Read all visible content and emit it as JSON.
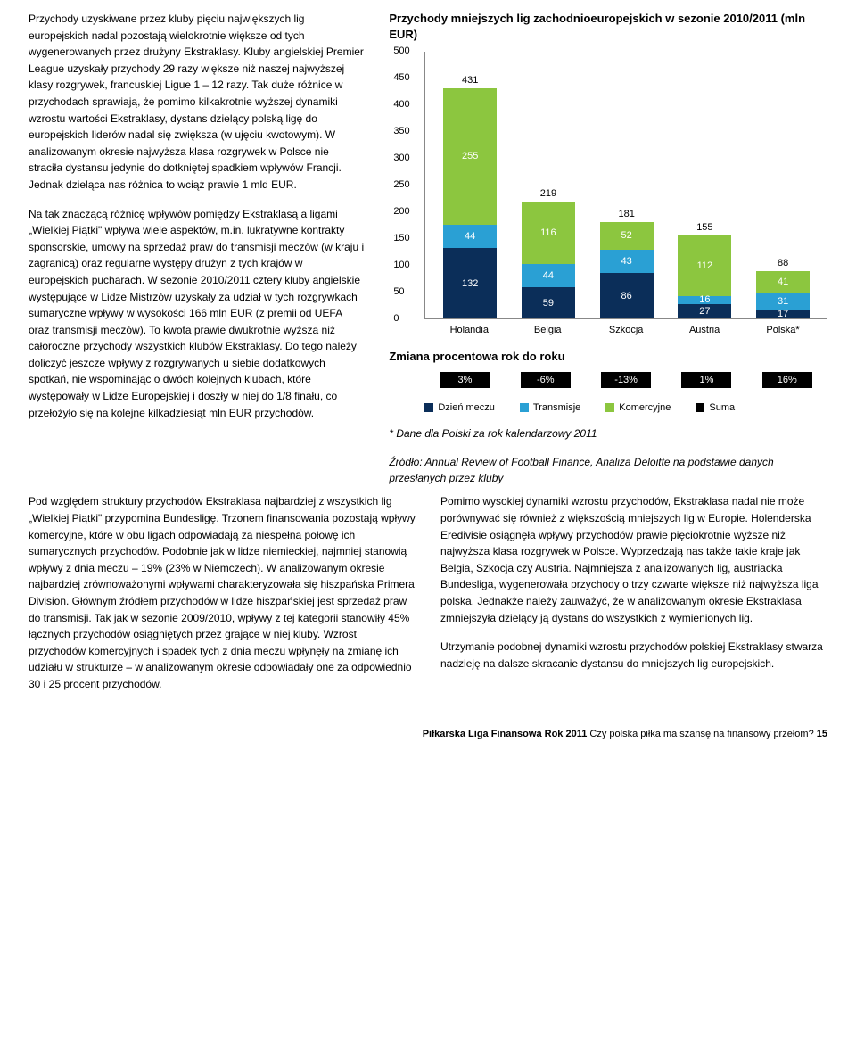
{
  "left": {
    "p1": "Przychody uzyskiwane przez kluby pięciu największych lig europejskich nadal pozostają wielokrotnie większe od tych wygenerowanych przez drużyny Ekstraklasy. Kluby angielskiej Premier League uzyskały przychody 29 razy większe niż naszej najwyższej klasy rozgrywek, francuskiej Ligue 1 – 12 razy. Tak duże różnice w przychodach sprawiają, że pomimo kilkakrotnie wyższej dynamiki wzrostu wartości Ekstraklasy, dystans dzielący polską ligę do europejskich liderów nadal się zwiększa (w ujęciu kwotowym). W analizowanym okresie najwyższa klasa rozgrywek w Polsce nie straciła dystansu jedynie do dotkniętej spadkiem wpływów Francji. Jednak dzieląca nas różnica to wciąż prawie 1 mld EUR.",
    "p2": "Na tak znaczącą różnicę wpływów pomiędzy Ekstraklasą a ligami „Wielkiej Piątki\" wpływa wiele aspektów, m.in. lukratywne kontrakty sponsorskie, umowy na sprzedaż praw do transmisji meczów (w kraju i zagranicą) oraz regularne występy drużyn z tych krajów w europejskich pucharach. W sezonie 2010/2011 cztery kluby angielskie występujące w Lidze Mistrzów uzyskały za udział w tych rozgrywkach sumaryczne wpływy w wysokości 166 mln EUR (z premii od UEFA oraz transmisji meczów). To kwota prawie dwukrotnie wyższa niż całoroczne przychody wszystkich klubów Ekstraklasy. Do tego należy doliczyć jeszcze wpływy z rozgrywanych u siebie dodatkowych spotkań, nie wspominając o dwóch kolejnych klubach, które występowały w Lidze Europejskiej i doszły w niej do 1/8 finału, co przełożyło się na kolejne kilkadziesiąt mln EUR przychodów."
  },
  "right": {
    "chart_title": "Przychody mniejszych lig zachodnioeuropejskich w sezonie 2010/2011 (mln EUR)",
    "chart": {
      "ymax": 500,
      "ytick_step": 50,
      "colors": {
        "dzien": "#0b2e59",
        "transmisje": "#2aa0d4",
        "komercyjne": "#8cc63f",
        "suma": "#000000"
      },
      "bars": [
        {
          "label": "Holandia",
          "total": 431,
          "seg": [
            {
              "v": 132,
              "c": "dzien"
            },
            {
              "v": 44,
              "c": "transmisje"
            },
            {
              "v": 255,
              "c": "komercyjne"
            }
          ]
        },
        {
          "label": "Belgia",
          "total": 219,
          "seg": [
            {
              "v": 59,
              "c": "dzien"
            },
            {
              "v": 44,
              "c": "transmisje"
            },
            {
              "v": 116,
              "c": "komercyjne"
            }
          ]
        },
        {
          "label": "Szkocja",
          "total": 181,
          "seg": [
            {
              "v": 86,
              "c": "dzien"
            },
            {
              "v": 43,
              "c": "transmisje"
            },
            {
              "v": 52,
              "c": "komercyjne"
            }
          ]
        },
        {
          "label": "Austria",
          "total": 155,
          "seg": [
            {
              "v": 27,
              "c": "dzien"
            },
            {
              "v": 16,
              "c": "transmisje"
            },
            {
              "v": 112,
              "c": "komercyjne"
            }
          ]
        },
        {
          "label": "Polska*",
          "total": 88,
          "seg": [
            {
              "v": 17,
              "c": "dzien"
            },
            {
              "v": 31,
              "c": "transmisje"
            },
            {
              "v": 41,
              "c": "komercyjne"
            }
          ],
          "ext": 88
        }
      ]
    },
    "subtitle": "Zmiana procentowa rok do roku",
    "pct": [
      "3%",
      "-6%",
      "-13%",
      "1%",
      "16%"
    ],
    "legend": [
      {
        "label": "Dzień meczu",
        "c": "dzien"
      },
      {
        "label": "Transmisje",
        "c": "transmisje"
      },
      {
        "label": "Komercyjne",
        "c": "komercyjne"
      },
      {
        "label": "Suma",
        "c": "suma"
      }
    ],
    "note1": "* Dane dla Polski za rok kalendarzowy 2011",
    "note2": "Źródło: Annual Review of Football Finance, Analiza Deloitte na podstawie danych przesłanych przez kluby"
  },
  "lower": {
    "l": "Pod względem struktury przychodów Ekstraklasa najbardziej z wszystkich lig „Wielkiej Piątki\" przypomina Bundesligę. Trzonem finansowania pozostają wpływy komercyjne, które w obu ligach odpowiadają za niespełna połowę ich sumarycznych przychodów. Podobnie jak w lidze niemieckiej, najmniej stanowią wpływy z dnia meczu – 19% (23% w Niemczech). W analizowanym okresie najbardziej zrównoważonymi wpływami charakteryzowała się hiszpańska Primera Division. Głównym źródłem przychodów w lidze hiszpańskiej jest sprzedaż praw do transmisji. Tak jak w sezonie 2009/2010, wpływy z tej kategorii stanowiły 45% łącznych przychodów osiągniętych przez grające w niej kluby. Wzrost przychodów komercyjnych i spadek tych z dnia meczu wpłynęły na zmianę ich udziału w strukturze – w analizowanym okresie odpowiadały one za odpowiednio 30 i 25 procent przychodów.",
    "r1": "Pomimo wysokiej dynamiki wzrostu przychodów, Ekstraklasa nadal nie może porównywać się również z większością mniejszych lig w Europie. Holenderska Eredivisie osiągnęła wpływy przychodów prawie pięciokrotnie wyższe niż najwyższa klasa rozgrywek w Polsce. Wyprzedzają nas także takie kraje jak Belgia, Szkocja czy Austria. Najmniejsza z analizowanych lig, austriacka Bundesliga, wygenerowała przychody o trzy czwarte większe niż najwyższa liga polska. Jednakże należy zauważyć, że w analizowanym okresie Ekstraklasa zmniejszyła dzielący ją dystans do wszystkich z wymienionych lig.",
    "r2": "Utrzymanie podobnej dynamiki wzrostu przychodów polskiej Ekstraklasy stwarza nadzieję na dalsze skracanie dystansu do mniejszych lig europejskich."
  },
  "footer": {
    "bold": "Piłkarska Liga Finansowa Rok 2011",
    "rest": " Czy polska piłka ma szansę na finansowy przełom?   ",
    "page": "15"
  }
}
